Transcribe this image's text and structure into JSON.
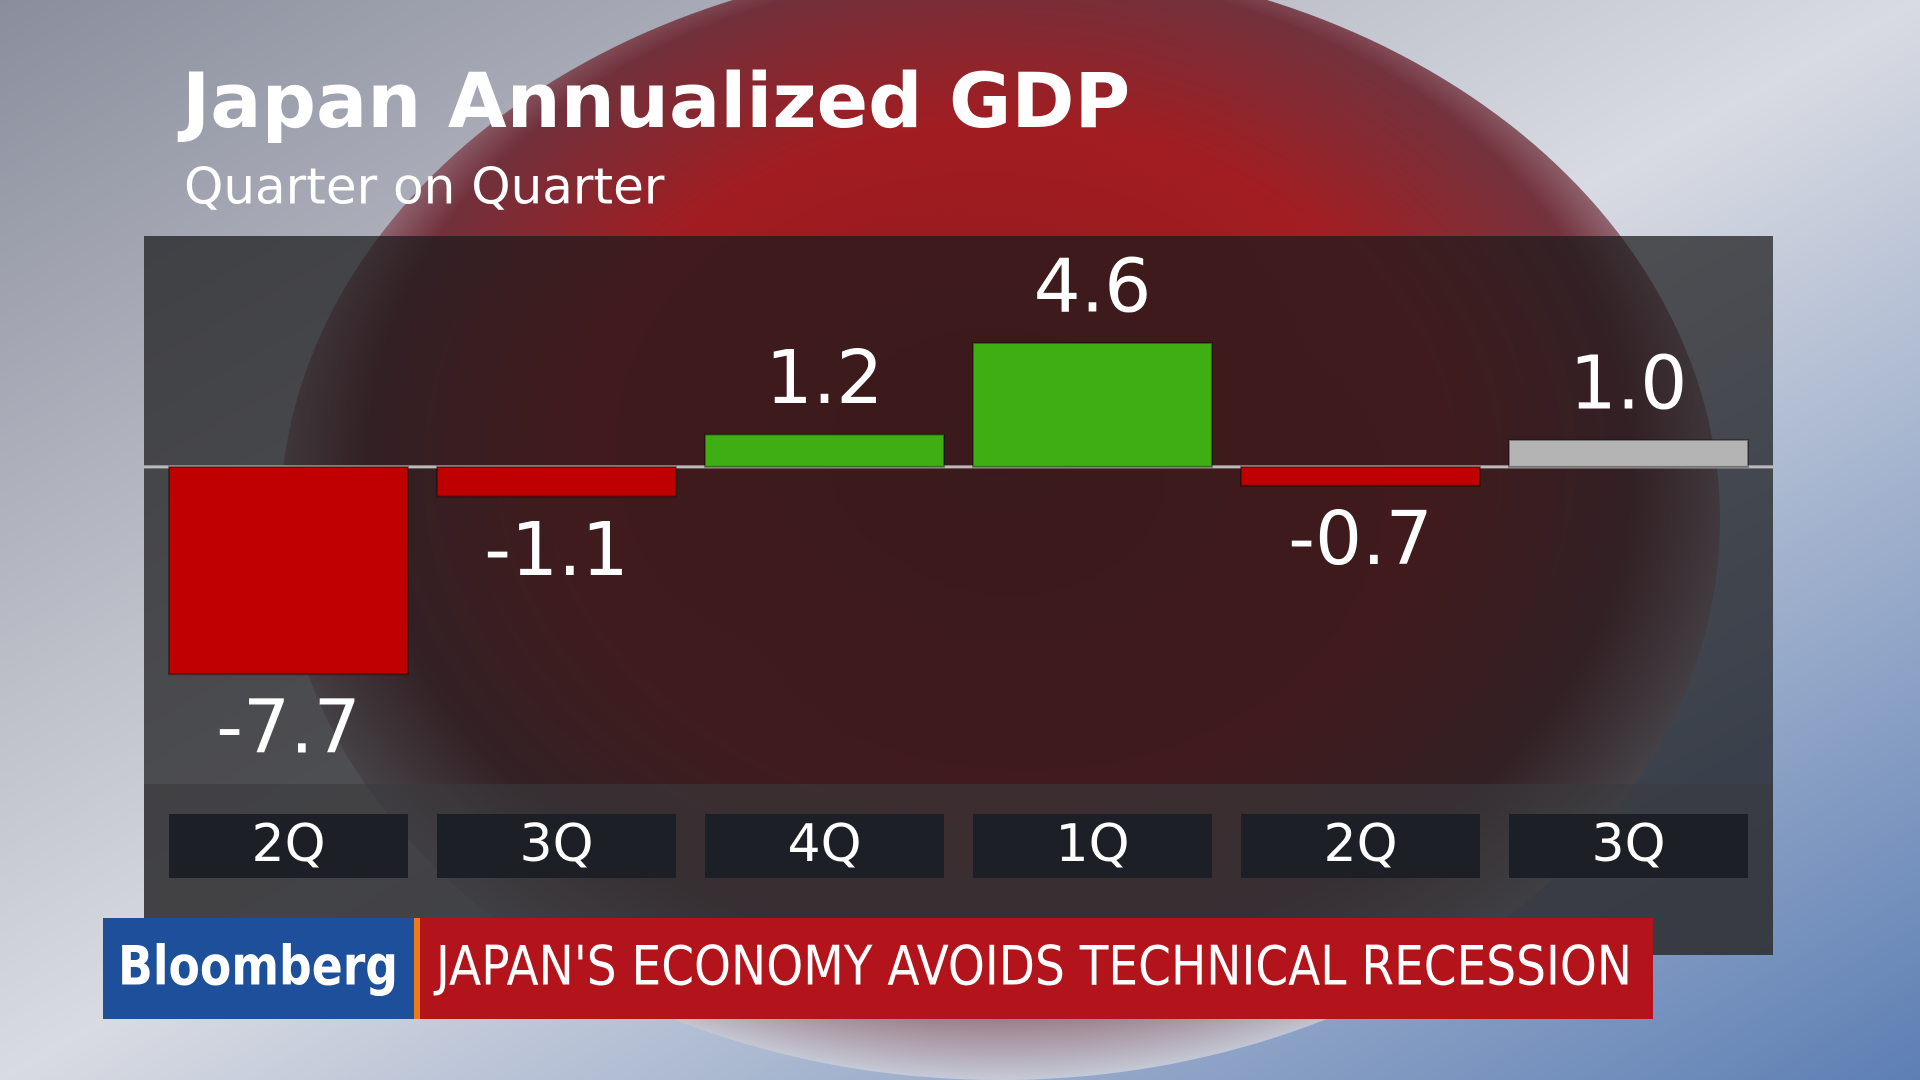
{
  "chart_data": {
    "type": "bar",
    "title": "Japan Annualized GDP",
    "subtitle": "Quarter on Quarter",
    "categories": [
      "2Q",
      "3Q",
      "4Q",
      "1Q",
      "2Q",
      "3Q"
    ],
    "values": [
      -7.7,
      -1.1,
      1.2,
      4.6,
      -0.7,
      1.0
    ],
    "value_labels": [
      "-7.7",
      "-1.1",
      "1.2",
      "4.6",
      "-0.7",
      "1.0"
    ],
    "colors": [
      "#c00000",
      "#c00000",
      "#3fae12",
      "#3fae12",
      "#c00000",
      "#b4b4b4"
    ],
    "ylim": [
      -12,
      8.5
    ]
  },
  "banner": {
    "brand": "Bloomberg",
    "headline": "JAPAN'S ECONOMY AVOIDS TECHNICAL RECESSION"
  }
}
